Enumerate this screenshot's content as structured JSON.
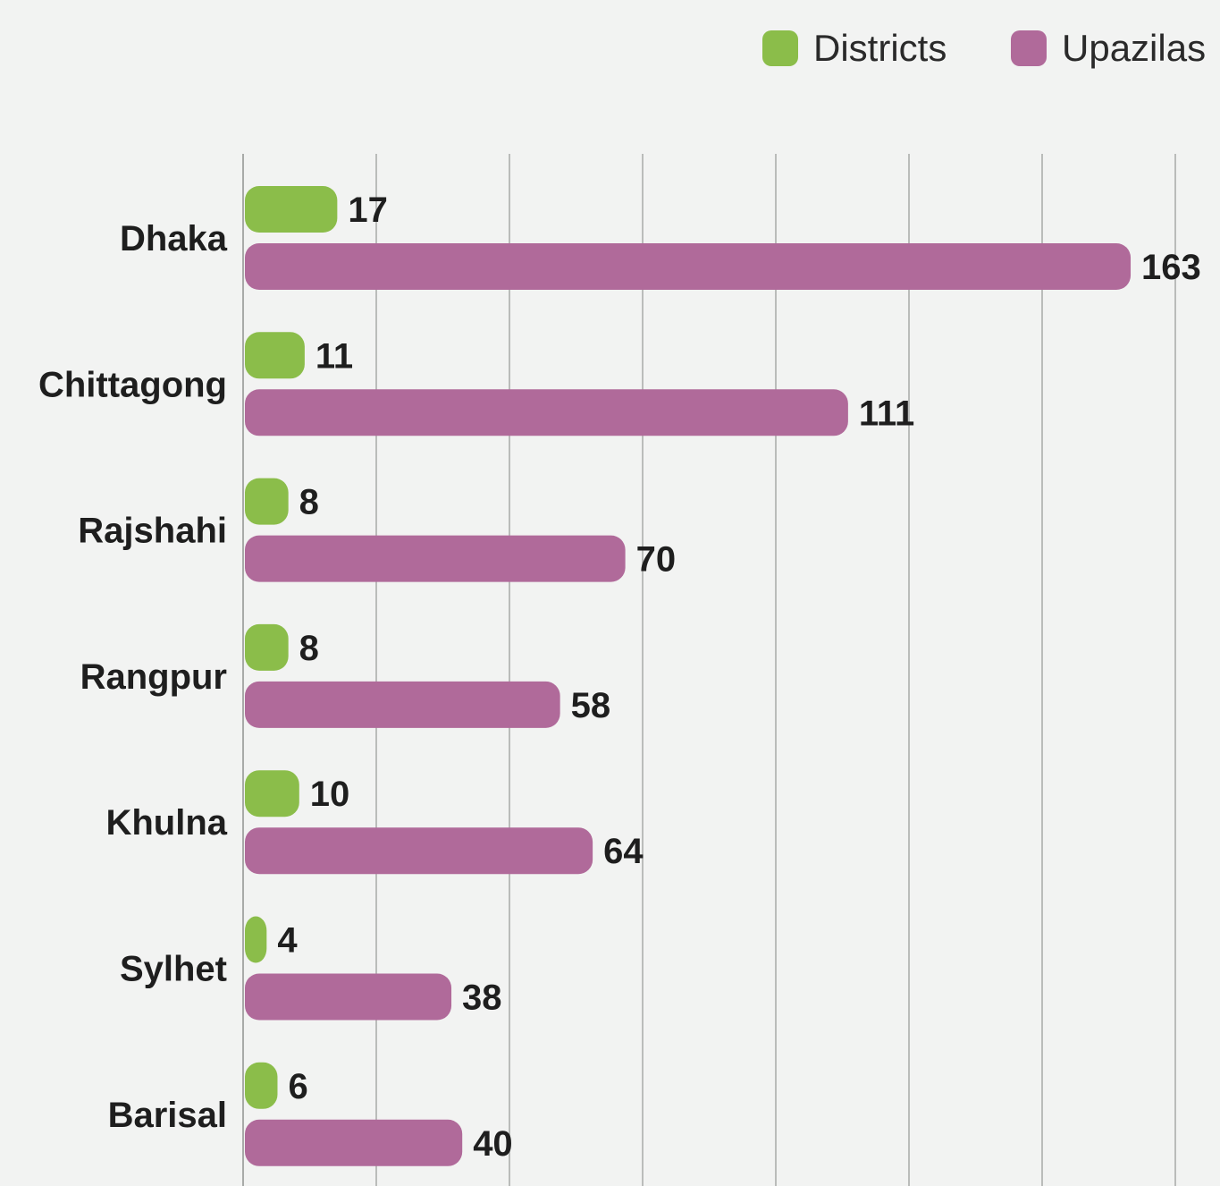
{
  "chart_data": {
    "type": "bar",
    "orientation": "horizontal",
    "title": "",
    "xlabel": "",
    "ylabel": "",
    "categories": [
      "Dhaka",
      "Chittagong",
      "Rajshahi",
      "Rangpur",
      "Khulna",
      "Sylhet",
      "Barisal"
    ],
    "series": [
      {
        "name": "Districts",
        "color": "#8bbd4a",
        "values": [
          17,
          11,
          8,
          8,
          10,
          4,
          6
        ]
      },
      {
        "name": "Upazilas",
        "color": "#b06a9a",
        "values": [
          163,
          111,
          70,
          58,
          64,
          38,
          40
        ]
      }
    ],
    "xlim": [
      0,
      170
    ],
    "grid": true,
    "gridline_count": 7,
    "legend_position": "top-right",
    "data_labels": true
  },
  "colors": {
    "background": "#f2f3f2",
    "gridline": "#a8aaa8",
    "text": "#1e1e1e"
  }
}
